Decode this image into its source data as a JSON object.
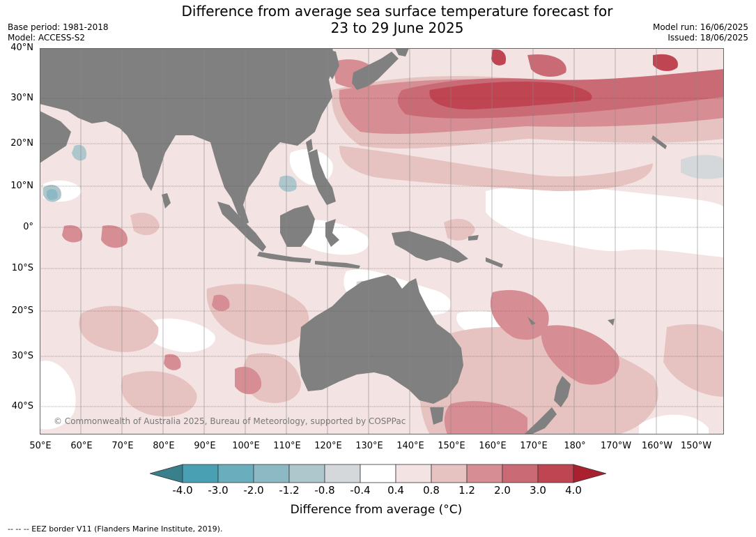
{
  "title": {
    "line1": "Difference from average sea surface temperature forecast for",
    "line2": "23 to 29 June 2025"
  },
  "meta": {
    "base_period": "Base period: 1981-2018",
    "model": "Model: ACCESS-S2",
    "model_run": "Model run: 16/06/2025",
    "issued": "Issued: 18/06/2025"
  },
  "map": {
    "lat_labels": [
      "40°N",
      "30°N",
      "20°N",
      "10°N",
      "0°",
      "10°S",
      "20°S",
      "30°S",
      "40°S"
    ],
    "lon_labels": [
      "50°E",
      "60°E",
      "70°E",
      "80°E",
      "90°E",
      "100°E",
      "110°E",
      "120°E",
      "130°E",
      "140°E",
      "150°E",
      "160°E",
      "170°E",
      "180°",
      "170°W",
      "160°W",
      "150°W"
    ],
    "land_color": "#808080",
    "copyright": "© Commonwealth of Australia 2025, Bureau of Meteorology, supported by COSPPac"
  },
  "colorbar": {
    "labels": [
      "-4.0",
      "-3.0",
      "-2.0",
      "-1.2",
      "-0.8",
      "-0.4",
      "0.4",
      "0.8",
      "1.2",
      "2.0",
      "3.0",
      "4.0"
    ],
    "colors": [
      "#3a7f8c",
      "#4aa0b3",
      "#6aaebd",
      "#8cb9c4",
      "#adc7cc",
      "#d5d8da",
      "#ffffff",
      "#f3e4e3",
      "#e6c3c0",
      "#d68e94",
      "#c96a74",
      "#bf4553",
      "#a9202f"
    ],
    "title": "Difference from average (°C)"
  },
  "footer": "--  --  -- EEZ border V11 (Flanders Marine Institute, 2019)."
}
